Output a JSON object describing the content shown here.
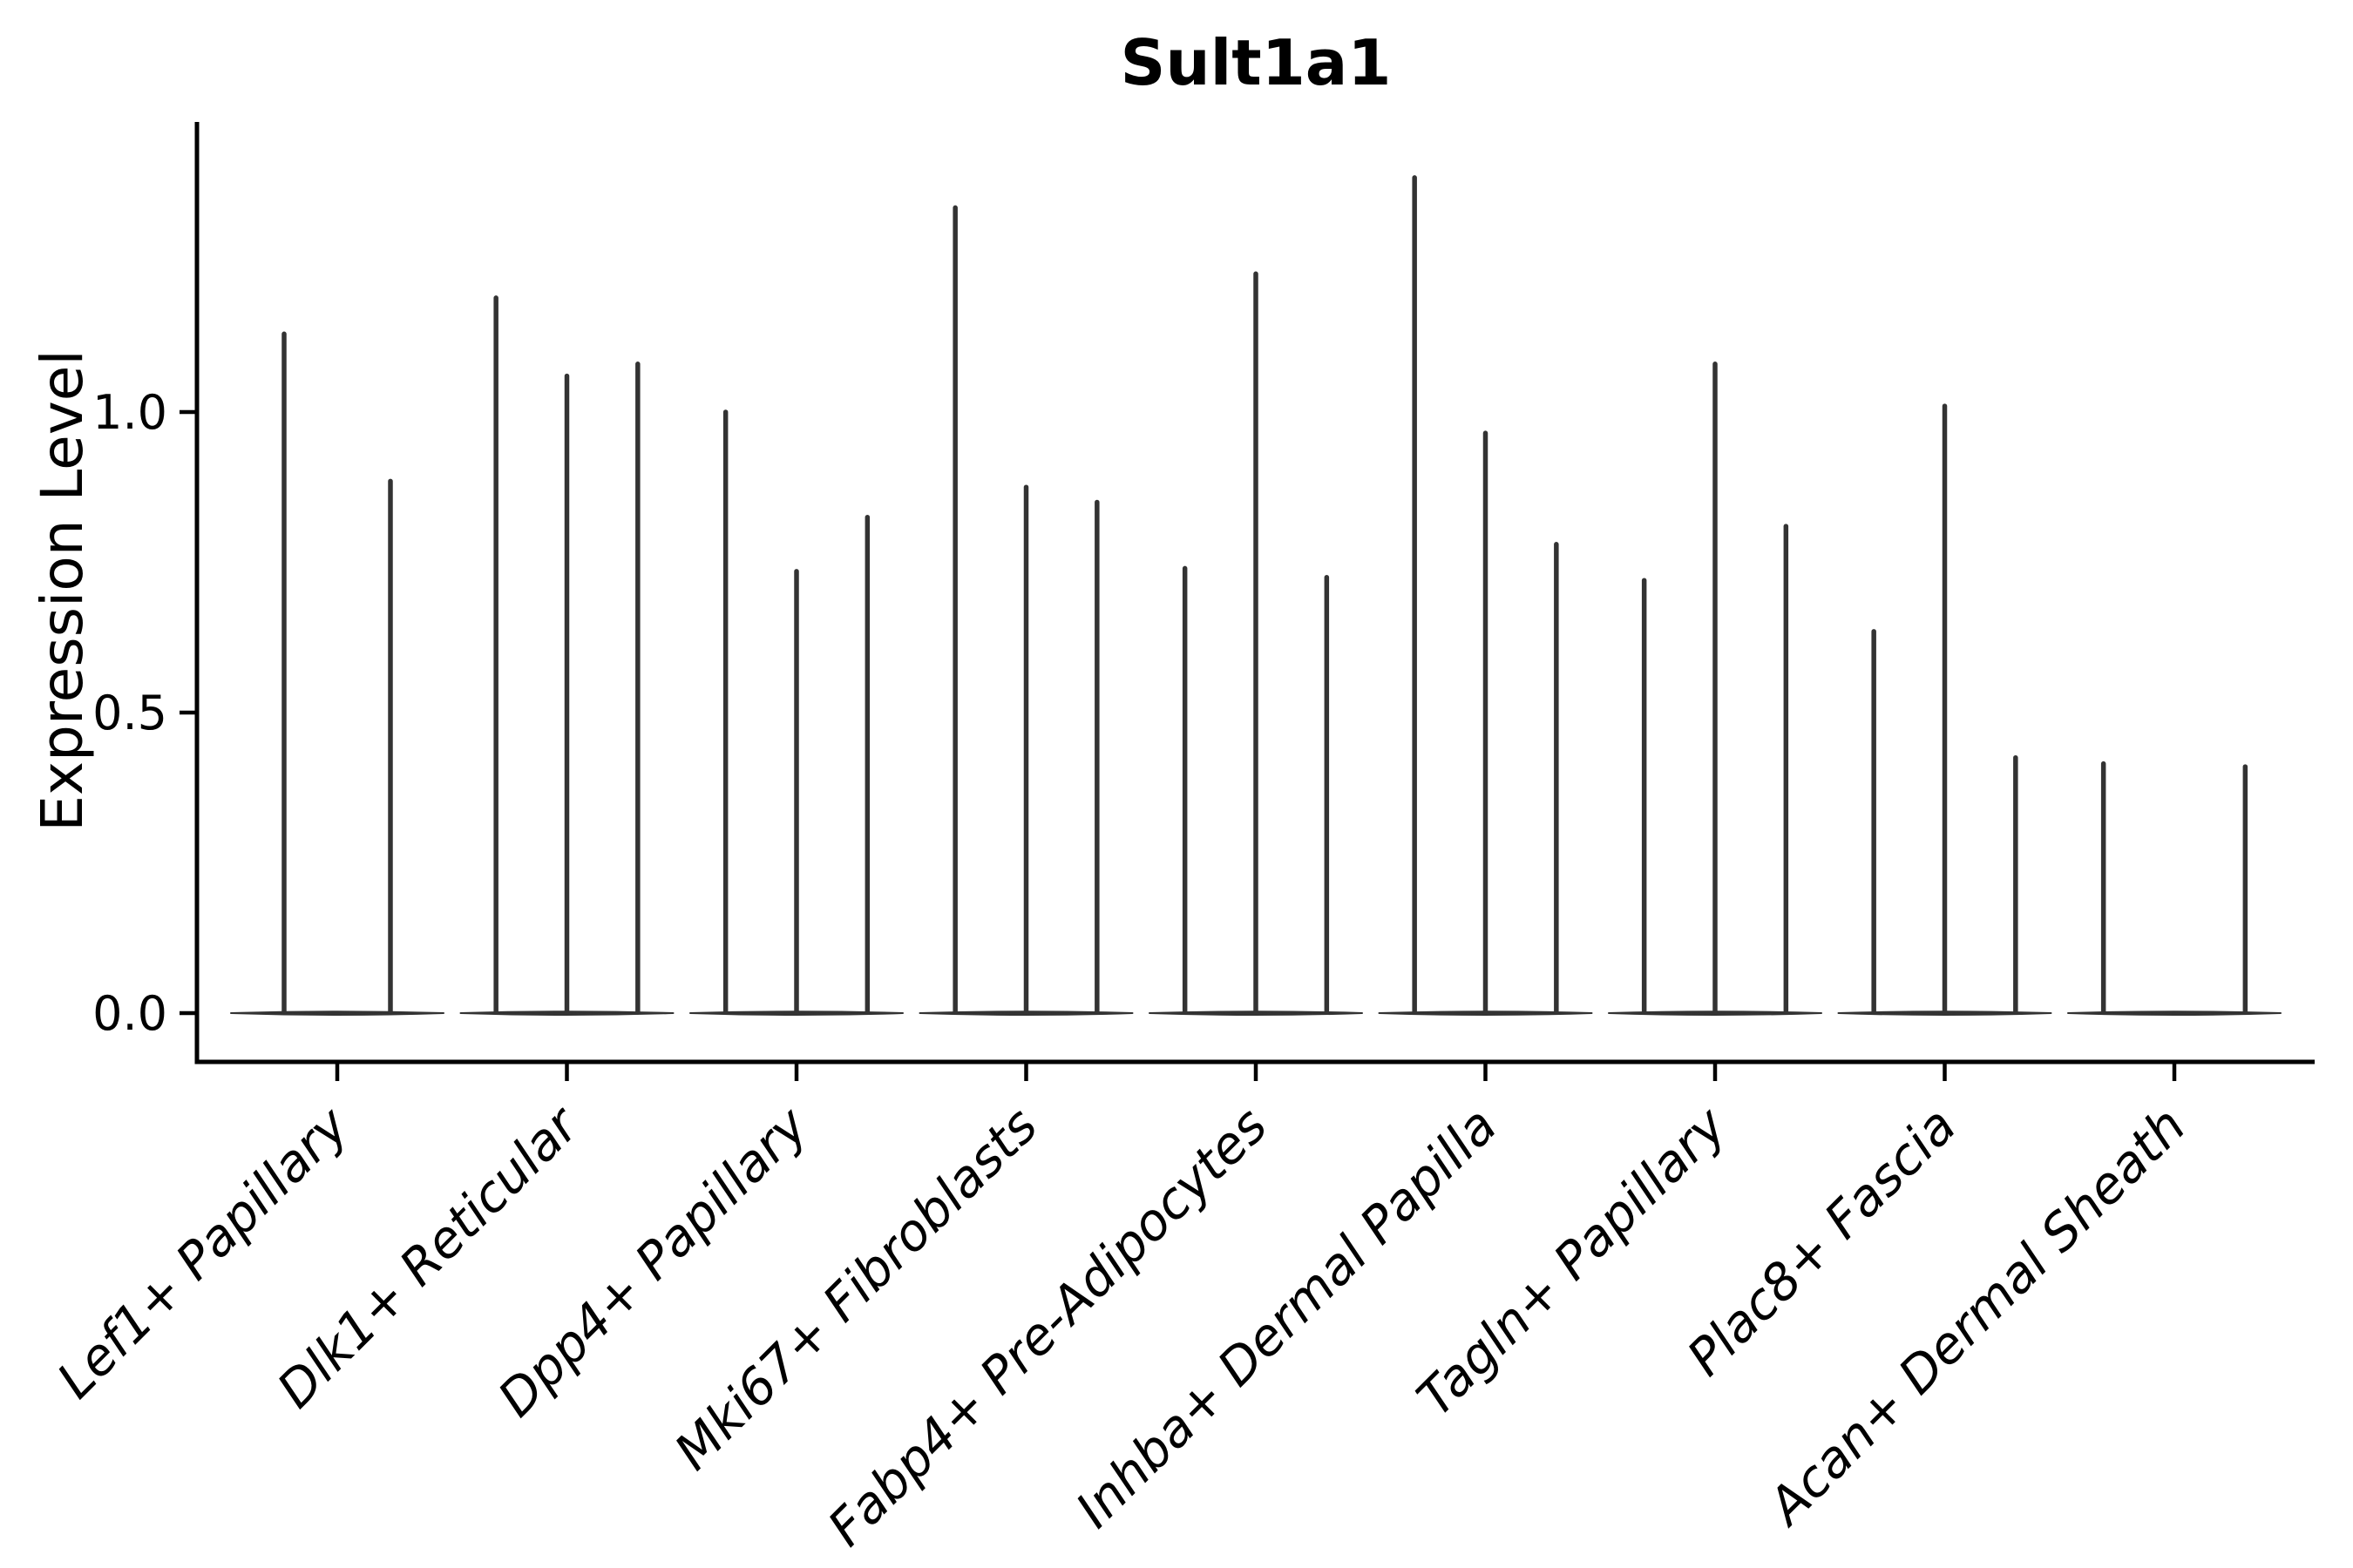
{
  "title": "Sult1a1",
  "chart_data": {
    "type": "violin",
    "title": "Sult1a1",
    "xlabel": "",
    "ylabel": "Expression Level",
    "ytick_labels": [
      "0.0",
      "0.5",
      "1.0"
    ],
    "ytick_values": [
      0.0,
      0.5,
      1.0
    ],
    "ylim": [
      -0.08,
      1.48
    ],
    "grid": false,
    "legend_position": "none",
    "categories": [
      "Lef1+ Papillary",
      "Dlk1+ Reticular",
      "Dpp4+ Papillary",
      "Mki67+ Fibroblasts",
      "Fabp4+ Pre-Adipocytes",
      "Inhba+ Dermal Papilla",
      "Tagln+ Papillary",
      "Plac8+ Fascia",
      "Acan+ Dermal Sheath"
    ],
    "groups": [
      {
        "category": "Lef1+ Papillary",
        "violin_maxima": [
          1.13,
          0.885
        ]
      },
      {
        "category": "Dlk1+ Reticular",
        "violin_maxima": [
          1.19,
          1.06,
          1.08
        ]
      },
      {
        "category": "Dpp4+ Papillary",
        "violin_maxima": [
          1.0,
          0.735,
          0.825
        ]
      },
      {
        "category": "Mki67+ Fibroblasts",
        "violin_maxima": [
          1.34,
          0.875,
          0.85
        ]
      },
      {
        "category": "Fabp4+ Pre-Adipocytes",
        "violin_maxima": [
          0.74,
          1.23,
          0.725
        ]
      },
      {
        "category": "Inhba+ Dermal Papilla",
        "violin_maxima": [
          1.39,
          0.965,
          0.78
        ]
      },
      {
        "category": "Tagln+ Papillary",
        "violin_maxima": [
          0.72,
          1.08,
          0.81
        ]
      },
      {
        "category": "Plac8+ Fascia",
        "violin_maxima": [
          0.635,
          1.01,
          0.425
        ]
      },
      {
        "category": "Acan+ Dermal Sheath",
        "violin_maxima": [
          0.415,
          null,
          0.41
        ]
      }
    ],
    "colors": {
      "violin": "#333333",
      "axis": "#000000",
      "text": "#000000",
      "background": "#ffffff"
    }
  }
}
